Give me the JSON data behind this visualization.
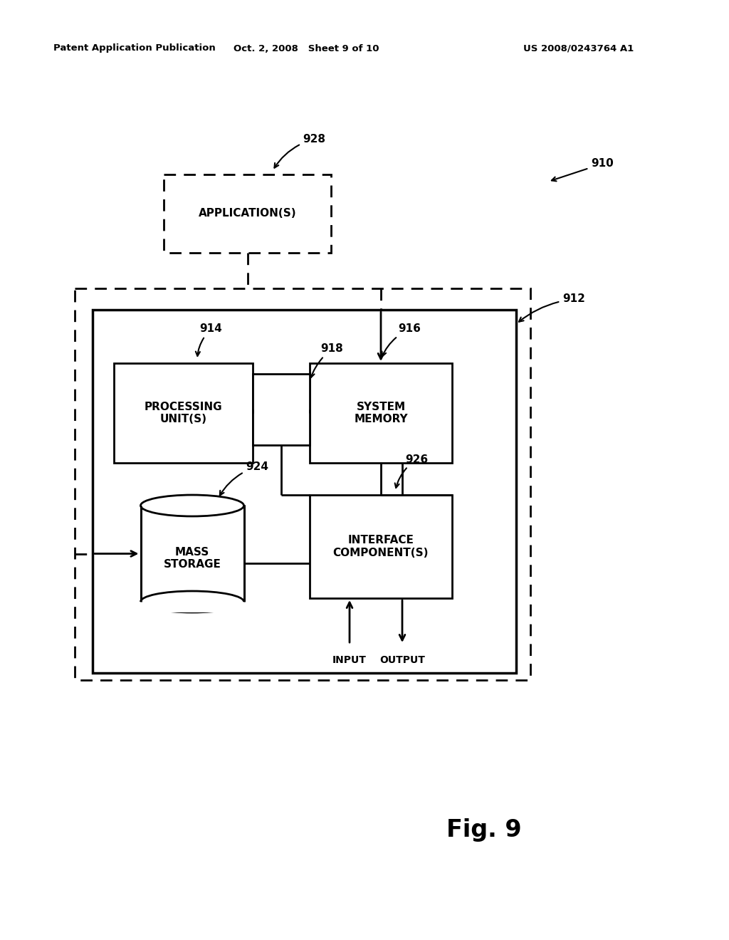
{
  "bg_color": "#ffffff",
  "header_left": "Patent Application Publication",
  "header_mid": "Oct. 2, 2008   Sheet 9 of 10",
  "header_right": "US 2008/0243764 A1",
  "fig_label": "Fig. 9",
  "labels": {
    "app": "APPLICATION(S)",
    "proc": "PROCESSING\nUNIT(S)",
    "sysmem": "SYSTEM\nMEMORY",
    "mass": "MASS\nSTORAGE",
    "iface": "INTERFACE\nCOMPONENT(S)",
    "input": "INPUT",
    "output": "OUTPUT"
  }
}
